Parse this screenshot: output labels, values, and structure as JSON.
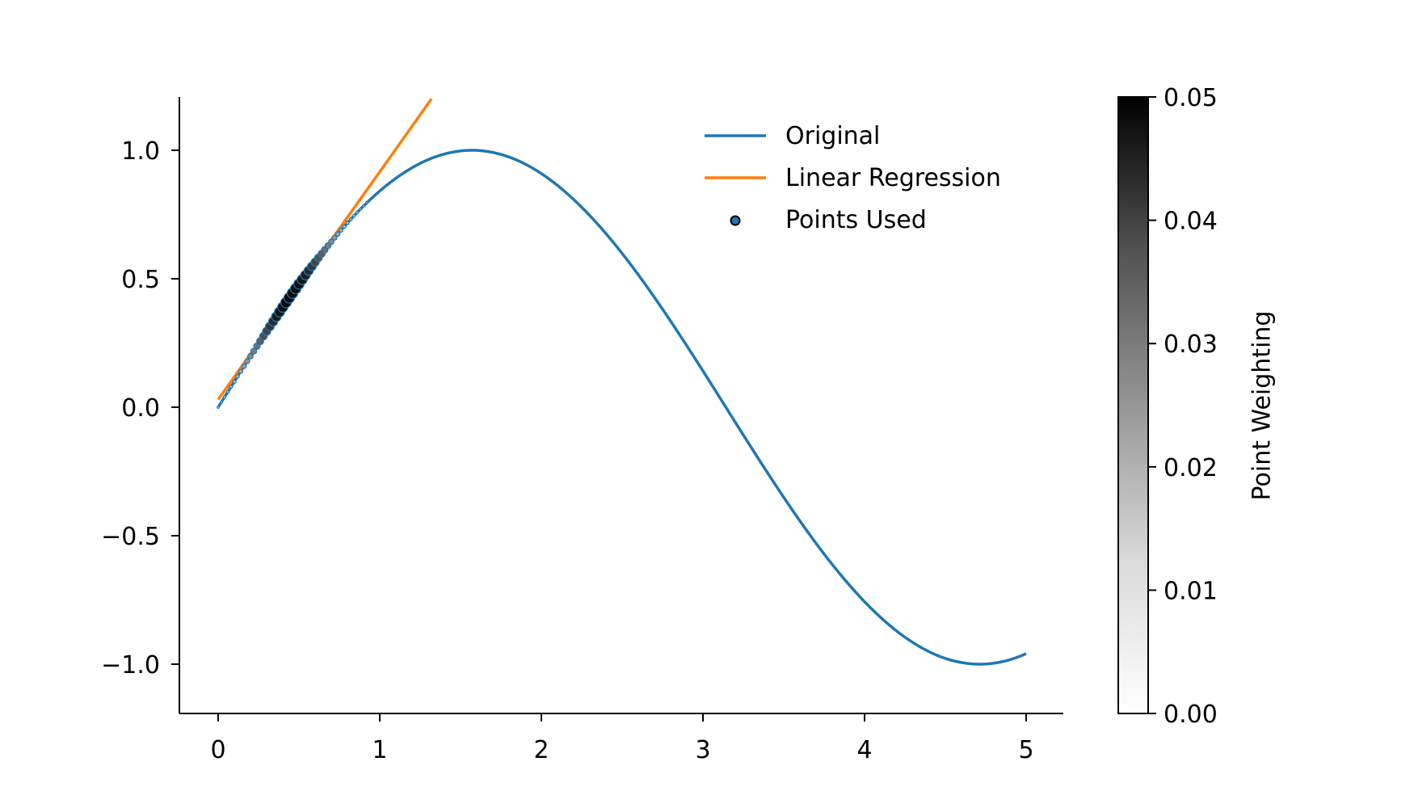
{
  "chart_data": {
    "type": "line",
    "title": "",
    "xlabel": "",
    "ylabel": "",
    "xlim": [
      -0.25,
      5.25
    ],
    "ylim": [
      -1.2,
      1.2
    ],
    "xticks": [
      0,
      1,
      2,
      3,
      4,
      5
    ],
    "xtick_labels": [
      "0",
      "1",
      "2",
      "3",
      "4",
      "5"
    ],
    "yticks": [
      -1.0,
      -0.5,
      0.0,
      0.5,
      1.0
    ],
    "ytick_labels": [
      "−1.0",
      "−0.5",
      "0.0",
      "0.5",
      "1.0"
    ],
    "grid": false,
    "legend_position": "top-right",
    "series": [
      {
        "name": "Original",
        "kind": "line",
        "color": "#1f77b4",
        "function": "sin(x)",
        "x_range": [
          0,
          5
        ],
        "sample_x": [
          0,
          0.5,
          1.0,
          1.5708,
          2.0,
          2.5,
          3.0,
          3.5,
          4.0,
          4.5,
          4.7124,
          5.0
        ],
        "sample_y": [
          0,
          0.479,
          0.841,
          1.0,
          0.909,
          0.598,
          0.141,
          -0.351,
          -0.757,
          -0.978,
          -1.0,
          -0.959
        ]
      },
      {
        "name": "Linear Regression",
        "kind": "line",
        "color": "#ff7f0e",
        "x": [
          0.0,
          1.32
        ],
        "y": [
          0.03,
          1.2
        ]
      },
      {
        "name": "Points Used",
        "kind": "scatter",
        "color": "#1f77b4",
        "edge_color": "#000000",
        "x_range": [
          0,
          0.92
        ],
        "point_count": 47,
        "weight_peak_x": 0.45,
        "weight_max": 0.05
      }
    ],
    "colorbar": {
      "label": "Point Weighting",
      "colormap": "Greys",
      "range": [
        0.0,
        0.05
      ],
      "ticks": [
        0.0,
        0.01,
        0.02,
        0.03,
        0.04,
        0.05
      ],
      "tick_labels": [
        "0.00",
        "0.01",
        "0.02",
        "0.03",
        "0.04",
        "0.05"
      ]
    }
  }
}
